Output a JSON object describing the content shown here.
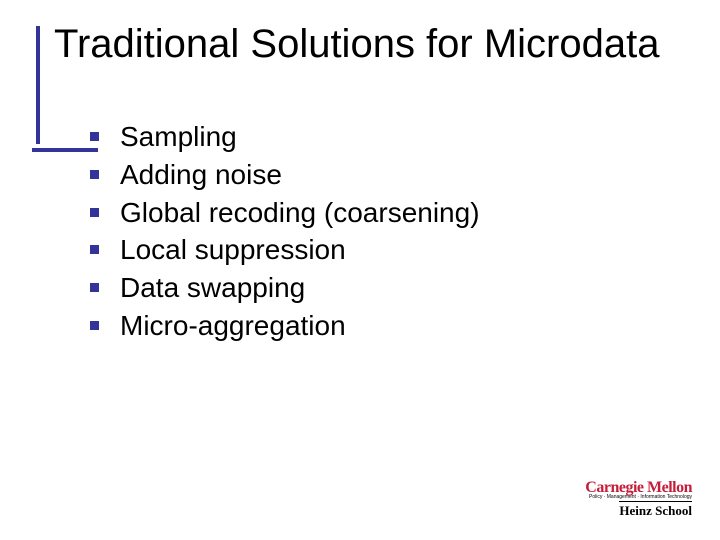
{
  "slide": {
    "title": "Traditional Solutions for Microdata",
    "title_fontsize": 40,
    "title_color": "#000000",
    "accent_color": "#333399",
    "bullets": [
      "Sampling",
      "Adding noise",
      "Global recoding (coarsening)",
      "Local suppression",
      "Data swapping",
      "Micro-aggregation"
    ],
    "bullet_fontsize": 28,
    "bullet_color": "#000000",
    "bullet_marker_color": "#333399",
    "background_color": "#ffffff"
  },
  "logo": {
    "line1": "Carnegie Mellon",
    "line1_color": "#c41e3a",
    "subtext": "Policy · Management · Information Technology",
    "line2": "Heinz School",
    "line2_color": "#000000"
  }
}
